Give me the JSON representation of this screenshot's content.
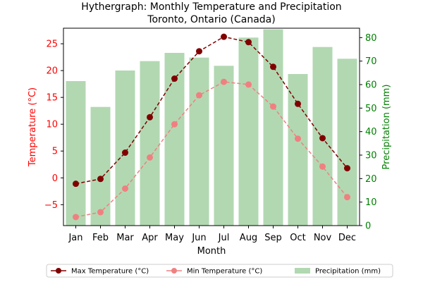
{
  "chart_data": {
    "type": "bar+line",
    "title": "Hythergraph: Monthly Temperature and Precipitation",
    "subtitle": "Toronto, Ontario (Canada)",
    "xlabel": "Month",
    "ylabel_left": "Temperature (°C)",
    "ylabel_right": "Precipitation (mm)",
    "categories": [
      "Jan",
      "Feb",
      "Mar",
      "Apr",
      "May",
      "Jun",
      "Jul",
      "Aug",
      "Sep",
      "Oct",
      "Nov",
      "Dec"
    ],
    "ylim_left": [
      -8.9,
      27.9
    ],
    "yticks_left": [
      -5,
      0,
      5,
      10,
      15,
      20,
      25
    ],
    "ylim_right": [
      0,
      84
    ],
    "yticks_right": [
      0,
      10,
      20,
      30,
      40,
      50,
      60,
      70,
      80
    ],
    "grid": false,
    "legend_position": "bottom",
    "series": [
      {
        "name": "Max Temperature (°C)",
        "kind": "line",
        "axis": "left",
        "color": "#800000",
        "line_style": "dashed",
        "marker": "circle",
        "values": [
          -1.1,
          -0.2,
          4.7,
          11.3,
          18.5,
          23.6,
          26.3,
          25.3,
          20.7,
          13.8,
          7.4,
          1.8
        ]
      },
      {
        "name": "Min Temperature (°C)",
        "kind": "line",
        "axis": "left",
        "color": "#f08080",
        "line_style": "dashed",
        "marker": "circle",
        "values": [
          -7.3,
          -6.4,
          -2.0,
          3.8,
          10.0,
          15.4,
          17.9,
          17.4,
          13.3,
          7.3,
          2.1,
          -3.6
        ]
      },
      {
        "name": "Precipitation (mm)",
        "kind": "bar",
        "axis": "right",
        "color": "#b2d8b2",
        "values": [
          61.5,
          50.5,
          66.0,
          70.0,
          73.5,
          71.5,
          68.0,
          80.0,
          83.5,
          64.5,
          76.0,
          71.0
        ]
      }
    ],
    "colors": {
      "left_axis": "#ff0000",
      "right_axis": "#008000",
      "axis_line": "#000000"
    }
  }
}
